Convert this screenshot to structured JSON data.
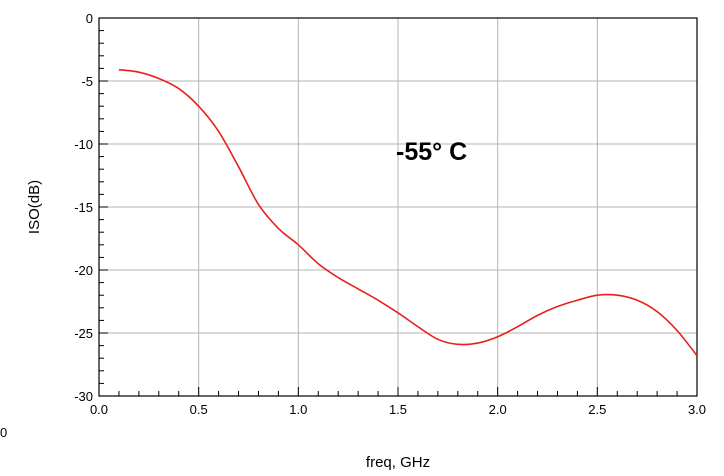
{
  "chart_data": {
    "type": "line",
    "title": "",
    "xlabel": "freq, GHz",
    "ylabel": "ISO(dB)",
    "xlim": [
      0.0,
      3.0
    ],
    "ylim": [
      -30,
      0
    ],
    "x_ticks": [
      0.0,
      0.5,
      1.0,
      1.5,
      2.0,
      2.5,
      3.0
    ],
    "x_tick_labels": [
      "0.0",
      "0.5",
      "1.0",
      "1.5",
      "2.0",
      "2.5",
      "3.0"
    ],
    "y_ticks": [
      0,
      -5,
      -10,
      -15,
      -20,
      -25,
      -30
    ],
    "y_tick_labels": [
      "0",
      "-5",
      "-10",
      "-15",
      "-20",
      "-25",
      "-30"
    ],
    "grid": true,
    "annotation": "-55° C",
    "stray_label": "0",
    "series": [
      {
        "color": "#e8201a",
        "x": [
          0.1,
          0.2,
          0.3,
          0.4,
          0.5,
          0.6,
          0.7,
          0.8,
          0.9,
          1.0,
          1.1,
          1.2,
          1.3,
          1.4,
          1.5,
          1.6,
          1.7,
          1.8,
          1.9,
          2.0,
          2.1,
          2.2,
          2.3,
          2.4,
          2.5,
          2.6,
          2.7,
          2.8,
          2.9,
          3.0
        ],
        "y": [
          -4.1,
          -4.3,
          -4.8,
          -5.6,
          -7.0,
          -9.0,
          -11.8,
          -14.8,
          -16.7,
          -18.0,
          -19.5,
          -20.6,
          -21.5,
          -22.4,
          -23.4,
          -24.5,
          -25.5,
          -25.9,
          -25.8,
          -25.3,
          -24.5,
          -23.6,
          -22.9,
          -22.4,
          -22.0,
          -22.0,
          -22.4,
          -23.3,
          -24.8,
          -26.8
        ]
      }
    ]
  }
}
